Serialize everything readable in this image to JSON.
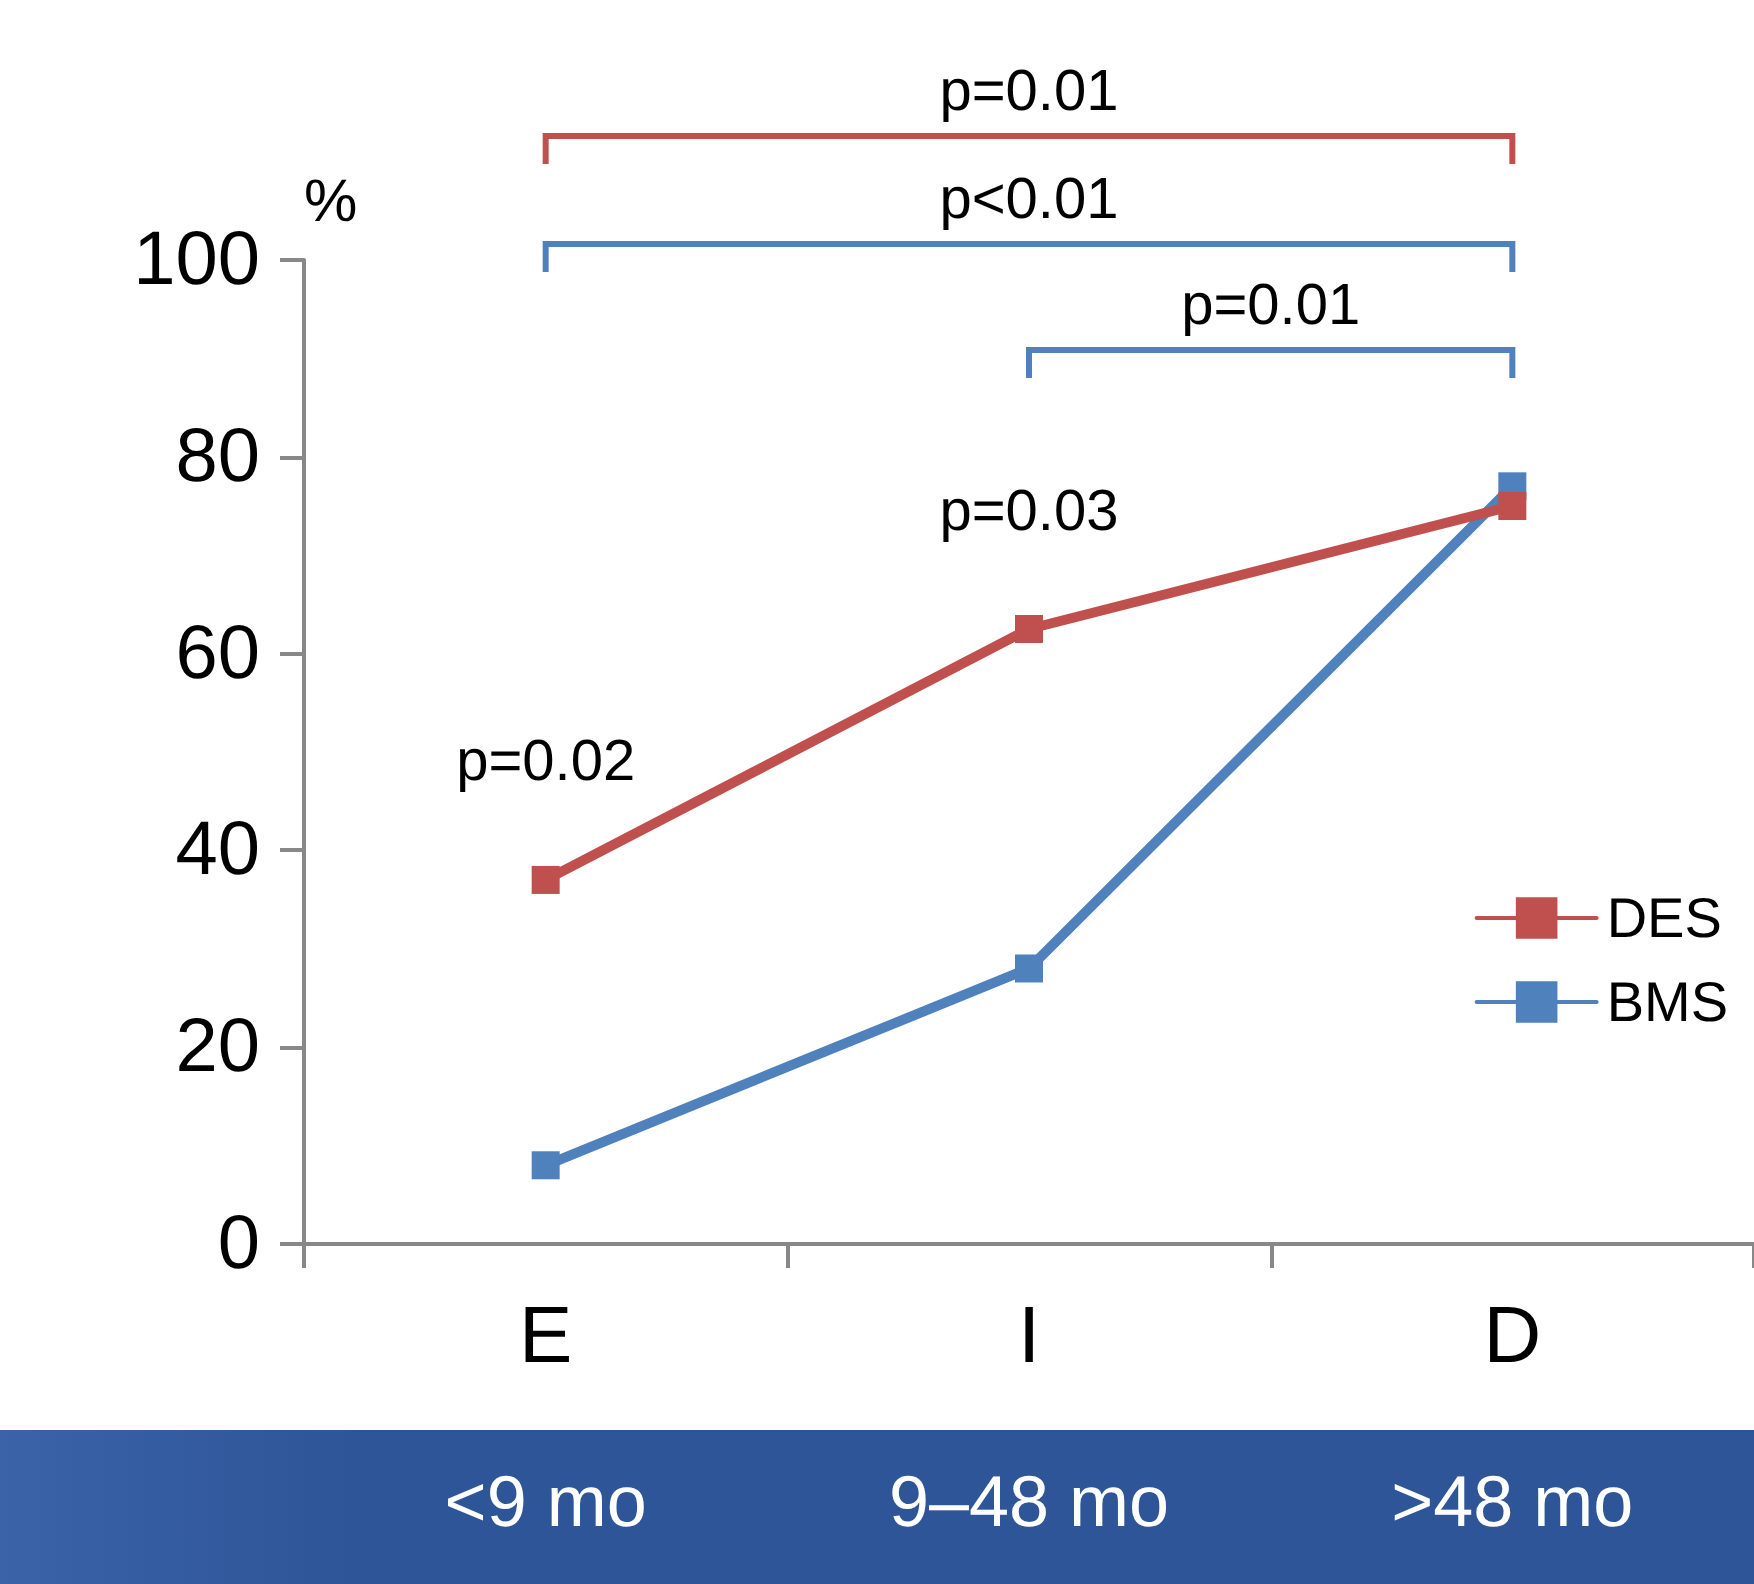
{
  "chart_data": {
    "type": "line",
    "ylabel": "%",
    "categories": [
      "E",
      "I",
      "D"
    ],
    "series": [
      {
        "name": "DES",
        "color": "#c0504d",
        "values": [
          37,
          62.5,
          75
        ]
      },
      {
        "name": "BMS",
        "color": "#4f81bd",
        "values": [
          8,
          28,
          77
        ]
      }
    ],
    "ylim": [
      0,
      100
    ],
    "yticks": [
      0,
      20,
      40,
      60,
      80,
      100
    ],
    "grid": false,
    "legend": "right",
    "marker": "square",
    "line_style": "solid",
    "annotations": [
      {
        "text": "p=0.02",
        "x": "E",
        "y": 37
      },
      {
        "text": "p=0.03",
        "x": "I",
        "y": 62.5
      },
      "p=0.01",
      "p<0.01",
      "p=0.01",
      "<9 mo",
      "9–48 mo",
      ">48 mo"
    ]
  }
}
